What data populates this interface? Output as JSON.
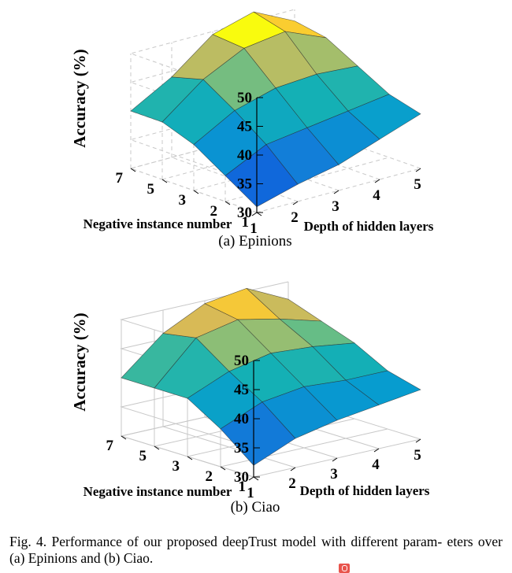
{
  "chart_data": [
    {
      "type": "surface",
      "subcaption": "(a)  Epinions",
      "xlabel": "Depth of hidden layers",
      "ylabel": "Negative instance number",
      "zlabel": "Accuracy (%)",
      "x": [
        1,
        2,
        3,
        4,
        5
      ],
      "y": [
        1,
        2,
        3,
        5,
        7
      ],
      "x_ticks": [
        "1",
        "2",
        "3",
        "4",
        "5"
      ],
      "y_ticks": [
        "1",
        "2",
        "3",
        "5",
        "7"
      ],
      "z_ticks": [
        "30",
        "35",
        "40",
        "45",
        "50"
      ],
      "zlim": [
        30,
        50
      ],
      "grid": true,
      "z": [
        [
          31.0,
          33.0,
          34.5,
          37.0,
          39.5
        ],
        [
          34.5,
          38.0,
          39.0,
          40.0,
          41.0
        ],
        [
          38.0,
          42.0,
          44.0,
          44.5,
          44.0
        ],
        [
          40.0,
          45.5,
          49.0,
          50.0,
          47.0
        ],
        [
          40.0,
          44.0,
          49.5,
          51.5,
          48.0
        ]
      ]
    },
    {
      "type": "surface",
      "subcaption": "(b)  Ciao",
      "xlabel": "Depth of hidden layers",
      "ylabel": "Negative instance number",
      "zlabel": "Accuracy (%)",
      "x": [
        1,
        2,
        3,
        4,
        5
      ],
      "y": [
        1,
        2,
        3,
        5,
        7
      ],
      "x_ticks": [
        "1",
        "2",
        "3",
        "4",
        "5"
      ],
      "y_ticks": [
        "1",
        "2",
        "3",
        "5",
        "7"
      ],
      "z_ticks": [
        "30",
        "35",
        "40",
        "45",
        "50"
      ],
      "zlim": [
        30,
        50
      ],
      "grid": true,
      "z": [
        [
          32.0,
          35.0,
          36.5,
          37.5,
          38.5
        ],
        [
          36.5,
          39.5,
          40.5,
          40.0,
          40.0
        ],
        [
          40.0,
          43.0,
          44.5,
          44.0,
          43.0
        ],
        [
          40.0,
          47.0,
          48.5,
          47.0,
          45.0
        ],
        [
          40.0,
          46.0,
          49.5,
          50.5,
          47.0
        ]
      ]
    }
  ],
  "figure": {
    "caption_lines": [
      "Fig. 4.  Performance of our proposed deepTrust model with different param-",
      "eters over (a) Epinions and (b) Ciao."
    ]
  },
  "colors": {
    "colormap": "parula",
    "grid": "#c8c8c8",
    "watermark": "#e8544c"
  }
}
